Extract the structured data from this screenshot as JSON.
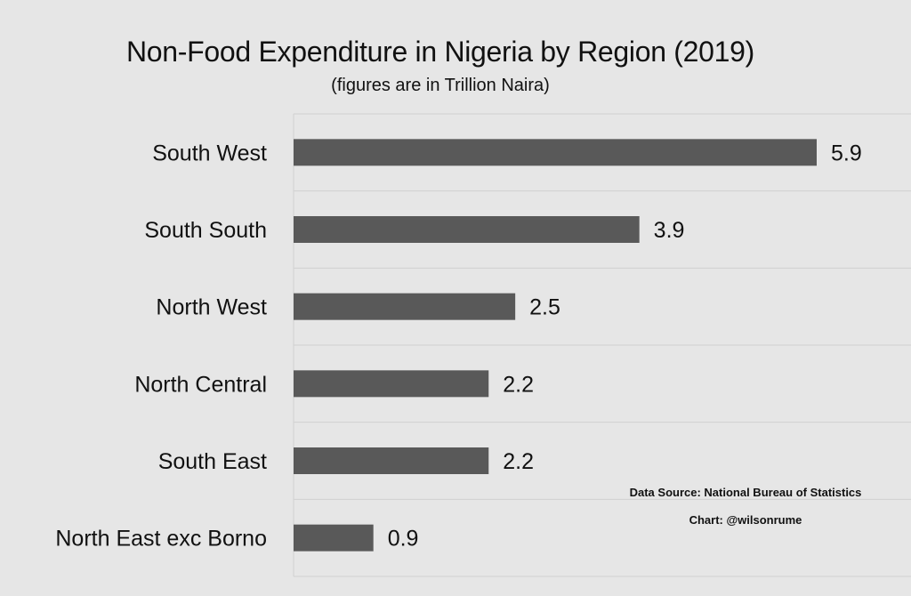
{
  "chart_data": {
    "type": "bar",
    "orientation": "horizontal",
    "title": "Non-Food Expenditure in Nigeria by Region (2019)",
    "subtitle": "(figures are in Trillion Naira)",
    "categories": [
      "South West",
      "South South",
      "North West",
      "North Central",
      "South East",
      "North East exc Borno"
    ],
    "values": [
      5.9,
      3.9,
      2.5,
      2.2,
      2.2,
      0.9
    ],
    "data_labels": [
      "5.9",
      "3.9",
      "2.5",
      "2.2",
      "2.2",
      "0.9"
    ],
    "xlabel": "",
    "ylabel": "",
    "grid": true,
    "legend": "none",
    "bar_color": "#595959",
    "gridline_color": "#d0d0d0"
  },
  "footnotes": {
    "source": "Data Source: National Bureau of Statistics",
    "credit": "Chart: @wilsonrume"
  }
}
